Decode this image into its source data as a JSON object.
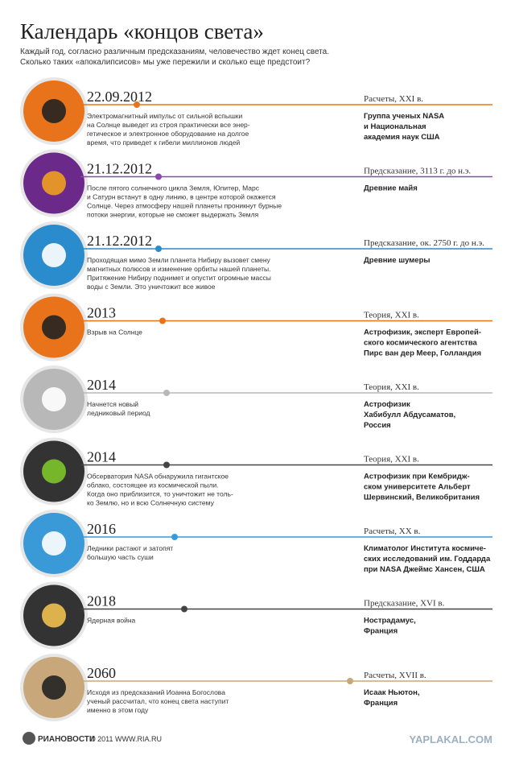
{
  "header": {
    "title": "Календарь «концов света»",
    "subtitle": [
      "Каждый год, согласно различным предсказаниям, человечество ждет конец света.",
      "Сколько таких «апокалипсисов» мы уже пережили и сколько еще предстоит?"
    ]
  },
  "items": [
    {
      "date": "22.09.2012",
      "description": [
        "Электромагнитный импульс от сильной вспышки",
        "на Солнце выведет из строя практически все энер-",
        "гетическое и электронное оборудование на долгое",
        "время, что приведет к гибели миллионов людей"
      ],
      "type": "Расчеты, XXI в.",
      "source": [
        "Группа ученых NASA",
        "и Национальная",
        "академия наук США"
      ]
    },
    {
      "date": "21.12.2012",
      "description": [
        "После пятого солнечного цикла Земля, Юпитер, Марс",
        "и Сатурн встанут в одну линию, в центре которой окажется",
        "Солнце. Через атмосферу нашей планеты проникнут бурные",
        "потоки энергии, которые не сможет выдержать Земля"
      ],
      "type": "Предсказание, 3113 г. до н.э.",
      "source": [
        "Древние майя"
      ]
    },
    {
      "date": "21.12.2012",
      "description": [
        "Проходящая мимо Земли планета Нибиру вызовет смену",
        "магнитных полюсов и изменение орбиты нашей планеты.",
        "Притяжение Нибиру поднимет и опустит огромные массы",
        "воды с Земли. Это уничтожит все живое"
      ],
      "type": "Предсказание, ок. 2750 г. до н.э.",
      "source": [
        "Древние шумеры"
      ]
    },
    {
      "date": "2013",
      "description": [
        "Взрыв на Солнце"
      ],
      "type": "Теория, XXI в.",
      "source": [
        "Астрофизик, эксперт Европей-",
        "ского космического агентства",
        "Пирс ван дер Меер, Голландия"
      ]
    },
    {
      "date": "2014",
      "description": [
        "Начнется новый",
        "ледниковый период"
      ],
      "type": "Теория, XXI в.",
      "source": [
        "Астрофизик",
        "Хабибулл Абдусаматов,",
        "Россия"
      ]
    },
    {
      "date": "2014",
      "description": [
        "Обсерватория NASA обнаружила гигантское",
        "облако, состоящее из космической пыли.",
        "Когда оно приблизится, то уничтожит не толь-",
        "ко Землю, но и всю Солнечную систему"
      ],
      "type": "Теория, XXI в.",
      "source": [
        "Астрофизик при Кембридж-",
        "ском университете Альберт",
        "Шервинский, Великобритания"
      ]
    },
    {
      "date": "2016",
      "description": [
        "Ледники растают и затопят",
        "большую часть суши"
      ],
      "type": "Расчеты, XX в.",
      "source": [
        "Климатолог Института космиче-",
        "ских исследований им. Годдарда",
        "при NASA Джеймс Хансен, США"
      ]
    },
    {
      "date": "2018",
      "description": [
        "Ядерная война"
      ],
      "type": "Предсказание, XVI в.",
      "source": [
        "Нострадамус,",
        "Франция"
      ]
    },
    {
      "date": "2060",
      "description": [
        "Исходя из предсказаний Иоанна Богослова",
        "ученый рассчитал, что конец света наступит",
        "именно в этом году"
      ],
      "type": "Расчеты, XVII в.",
      "source": [
        "Исаак Ньютон,",
        "Франция"
      ]
    }
  ],
  "footer": {
    "logo": "РИАНОВОСТИ",
    "copyright": "© 2011 WWW.RIA.RU",
    "watermark": "YAPLAKAL.COM"
  }
}
